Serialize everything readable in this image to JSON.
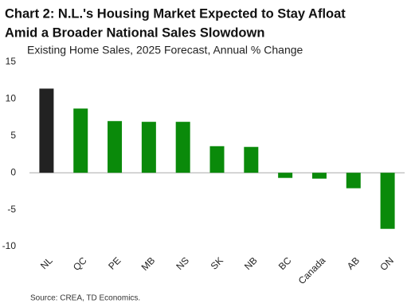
{
  "chart_data": {
    "type": "bar",
    "title": [
      "Chart 2: N.L.'s Housing Market Expected to Stay Afloat",
      "Amid a Broader National Sales Slowdown"
    ],
    "subtitle": "Existing Home Sales, 2025 Forecast, Annual % Change",
    "source": "Source: CREA, TD Economics.",
    "categories": [
      "NL",
      "QC",
      "PE",
      "MB",
      "NS",
      "SK",
      "NB",
      "BC",
      "Canada",
      "AB",
      "ON"
    ],
    "values": [
      11.4,
      8.7,
      7.0,
      6.9,
      6.9,
      3.6,
      3.5,
      -0.7,
      -0.8,
      -2.1,
      -7.6
    ],
    "colors": [
      "#222222",
      "#0a8a0a",
      "#0a8a0a",
      "#0a8a0a",
      "#0a8a0a",
      "#0a8a0a",
      "#0a8a0a",
      "#0a8a0a",
      "#0a8a0a",
      "#0a8a0a",
      "#0a8a0a"
    ],
    "ylim": [
      -10,
      15
    ],
    "yticks": [
      -10,
      -5,
      0,
      5,
      10,
      15
    ],
    "grid": false
  }
}
